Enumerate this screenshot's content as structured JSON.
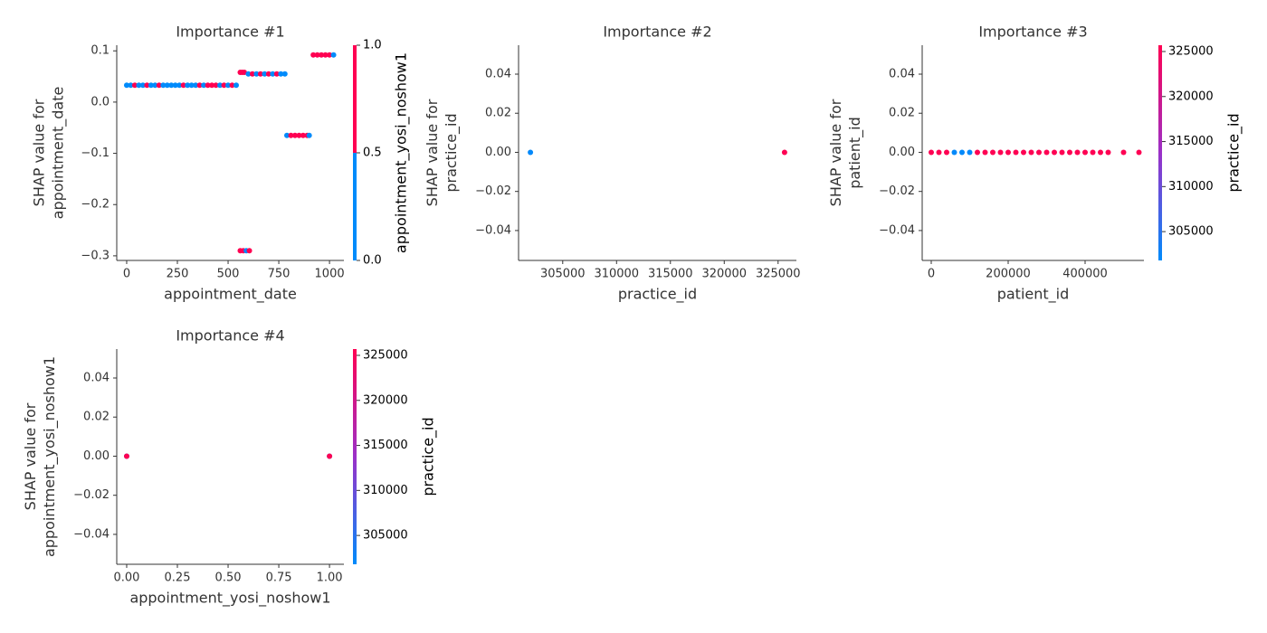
{
  "chart_data": [
    {
      "type": "scatter",
      "title": "Importance #1",
      "xlabel": "appointment_date",
      "ylabel": [
        "SHAP value for",
        "appointment_date"
      ],
      "xlim": [
        -49,
        1071
      ],
      "ylim": [
        -0.309,
        0.111
      ],
      "xticks": [
        0,
        250,
        500,
        750,
        1000
      ],
      "yticks": [
        0.1,
        {
          "value": 0,
          "label": "0.0"
        },
        {
          "value": -0.1,
          "label": "−0.1"
        },
        {
          "value": -0.2,
          "label": "−0.2"
        },
        {
          "value": -0.3,
          "label": "−0.3"
        }
      ],
      "x": [
        0,
        20,
        40,
        60,
        80,
        100,
        120,
        140,
        160,
        180,
        200,
        220,
        240,
        260,
        280,
        300,
        320,
        340,
        360,
        380,
        400,
        420,
        440,
        460,
        480,
        500,
        520,
        540,
        560,
        570,
        580,
        600,
        620,
        640,
        660,
        680,
        700,
        720,
        740,
        760,
        780,
        790,
        810,
        830,
        850,
        870,
        890,
        900,
        560,
        575,
        590,
        605,
        920,
        940,
        960,
        980,
        1000,
        1020
      ],
      "y": [
        0.033,
        0.033,
        0.033,
        0.033,
        0.033,
        0.033,
        0.033,
        0.033,
        0.033,
        0.033,
        0.033,
        0.033,
        0.033,
        0.033,
        0.033,
        0.033,
        0.033,
        0.033,
        0.033,
        0.033,
        0.033,
        0.033,
        0.033,
        0.033,
        0.033,
        0.033,
        0.033,
        0.033,
        0.058,
        0.058,
        0.058,
        0.055,
        0.055,
        0.055,
        0.055,
        0.055,
        0.055,
        0.055,
        0.055,
        0.055,
        0.055,
        -0.065,
        -0.065,
        -0.065,
        -0.065,
        -0.065,
        -0.065,
        -0.065,
        -0.29,
        -0.29,
        -0.29,
        -0.29,
        0.092,
        0.092,
        0.092,
        0.092,
        0.092,
        0.092
      ],
      "c": [
        0,
        0,
        1,
        0,
        0,
        1,
        0,
        0,
        1,
        0,
        0,
        0,
        0,
        0,
        1,
        0,
        0,
        0,
        1,
        0,
        1,
        1,
        1,
        0,
        1,
        0,
        1,
        0,
        1,
        1,
        1,
        0,
        1,
        0,
        1,
        0,
        1,
        0,
        1,
        0,
        0,
        0,
        1,
        1,
        1,
        1,
        1,
        0,
        1,
        1,
        0,
        1,
        1,
        1,
        1,
        1,
        1,
        0
      ],
      "clim": [
        0,
        1
      ],
      "colormap": [
        "#008bfb",
        "#ff0052"
      ],
      "discrete": true,
      "colorbar_label": "appointment_yosi_noshow1",
      "colorbar_ticks": [
        {
          "value": 0,
          "label": "0.0"
        },
        0.5,
        {
          "value": 1,
          "label": "1.0"
        }
      ]
    },
    {
      "type": "scatter",
      "title": "Importance #2",
      "xlabel": "practice_id",
      "ylabel": [
        "SHAP value for",
        "practice_id"
      ],
      "xlim": [
        300900,
        326700
      ],
      "ylim": [
        -0.0553,
        0.0548
      ],
      "xticks": [
        305000,
        310000,
        315000,
        320000,
        325000
      ],
      "yticks": [
        0.04,
        0.02,
        {
          "value": 0,
          "label": "0.00"
        },
        {
          "value": -0.02,
          "label": "−0.02"
        },
        {
          "value": -0.04,
          "label": "−0.04"
        }
      ],
      "x": [
        302000,
        325600
      ],
      "y": [
        0,
        0
      ],
      "c": [
        302000,
        325600
      ],
      "clim": [
        301800,
        325700
      ],
      "colormap": [
        "#008bfb",
        "#9b30c8",
        "#ff0052"
      ]
    },
    {
      "type": "scatter",
      "title": "Importance #3",
      "xlabel": "patient_id",
      "ylabel": [
        "SHAP value for",
        "patient_id"
      ],
      "xlim": [
        -23500,
        552900
      ],
      "ylim": [
        -0.0553,
        0.0548
      ],
      "xticks": [
        0,
        200000,
        400000
      ],
      "yticks": [
        0.04,
        0.02,
        {
          "value": 0,
          "label": "0.00"
        },
        {
          "value": -0.02,
          "label": "−0.02"
        },
        {
          "value": -0.04,
          "label": "−0.04"
        }
      ],
      "x": [
        0,
        20000,
        40000,
        60000,
        80000,
        100000,
        120000,
        140000,
        160000,
        180000,
        200000,
        220000,
        240000,
        260000,
        280000,
        300000,
        320000,
        340000,
        360000,
        380000,
        400000,
        420000,
        440000,
        460000,
        500000,
        540000
      ],
      "y": [
        0,
        0,
        0,
        0,
        0,
        0,
        0,
        0,
        0,
        0,
        0,
        0,
        0,
        0,
        0,
        0,
        0,
        0,
        0,
        0,
        0,
        0,
        0,
        0,
        0,
        0
      ],
      "c": [
        325600,
        325600,
        325600,
        302000,
        302000,
        302000,
        325600,
        325600,
        325600,
        325600,
        325600,
        325600,
        325600,
        325600,
        325600,
        325600,
        325600,
        325600,
        325600,
        325600,
        325600,
        325600,
        325600,
        325600,
        325600,
        325600
      ],
      "clim": [
        301800,
        325700
      ],
      "colormap": [
        "#008bfb",
        "#9b30c8",
        "#ff0052"
      ],
      "colorbar_label": "practice_id",
      "colorbar_ticks": [
        305000,
        310000,
        315000,
        320000,
        325000
      ]
    },
    {
      "type": "scatter",
      "title": "Importance #4",
      "xlabel": "appointment_yosi_noshow1",
      "ylabel": [
        "SHAP value for",
        "appointment_yosi_noshow1"
      ],
      "xlim": [
        -0.049,
        1.071
      ],
      "ylim": [
        -0.0553,
        0.0548
      ],
      "xticks": [
        {
          "value": 0,
          "label": "0.00"
        },
        0.25,
        {
          "value": 0.5,
          "label": "0.50"
        },
        0.75,
        {
          "value": 1,
          "label": "1.00"
        }
      ],
      "yticks": [
        0.04,
        0.02,
        {
          "value": 0,
          "label": "0.00"
        },
        {
          "value": -0.02,
          "label": "−0.02"
        },
        {
          "value": -0.04,
          "label": "−0.04"
        }
      ],
      "x": [
        0,
        1,
        0,
        1
      ],
      "y": [
        0,
        0,
        0,
        0
      ],
      "c": [
        302000,
        302000,
        325600,
        325600
      ],
      "clim": [
        301800,
        325700
      ],
      "colormap": [
        "#008bfb",
        "#9b30c8",
        "#ff0052"
      ],
      "colorbar_label": "practice_id",
      "colorbar_ticks": [
        305000,
        310000,
        315000,
        320000,
        325000
      ]
    }
  ]
}
